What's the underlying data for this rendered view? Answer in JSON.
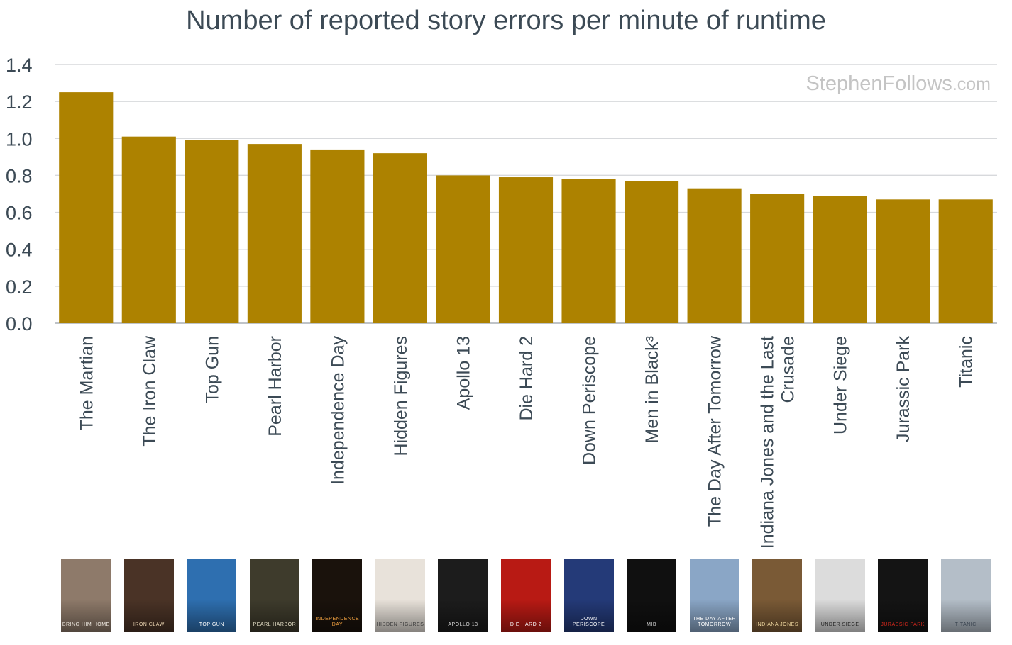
{
  "chart_data": {
    "type": "bar",
    "title": "Number of reported story errors per minute of runtime",
    "xlabel": "",
    "ylabel": "",
    "ylim": [
      0,
      1.4
    ],
    "yticks": [
      "0.0",
      "0.2",
      "0.4",
      "0.6",
      "0.8",
      "1.0",
      "1.2",
      "1.4"
    ],
    "grid": true,
    "bar_color": "#ad8200",
    "categories": [
      [
        "The Martian"
      ],
      [
        "The Iron Claw"
      ],
      [
        "Top Gun"
      ],
      [
        "Pearl Harbor"
      ],
      [
        "Independence Day"
      ],
      [
        "Hidden Figures"
      ],
      [
        "Apollo 13"
      ],
      [
        "Die Hard 2"
      ],
      [
        "Down Periscope"
      ],
      [
        "Men in Black³"
      ],
      [
        "The Day After Tomorrow"
      ],
      [
        "Indiana Jones and the Last",
        "Crusade"
      ],
      [
        "Under Siege"
      ],
      [
        "Jurassic Park"
      ],
      [
        "Titanic"
      ]
    ],
    "values": [
      1.25,
      1.01,
      0.99,
      0.97,
      0.94,
      0.92,
      0.8,
      0.79,
      0.78,
      0.77,
      0.73,
      0.7,
      0.69,
      0.67,
      0.67
    ]
  },
  "watermark": {
    "name": "StephenFollows",
    "tld": ".com"
  },
  "posters": [
    {
      "icon": "the-martian-poster-icon",
      "bg": "#8e7a6a",
      "fg": "#f2ece4",
      "text": "BRING HIM HOME"
    },
    {
      "icon": "the-iron-claw-poster-icon",
      "bg": "#4a3326",
      "fg": "#e8d2b0",
      "text": "IRON CLAW"
    },
    {
      "icon": "top-gun-poster-icon",
      "bg": "#2e6fb0",
      "fg": "#ffffff",
      "text": "TOP GUN"
    },
    {
      "icon": "pearl-harbor-poster-icon",
      "bg": "#3e3b2c",
      "fg": "#e6e0c8",
      "text": "PEARL HARBOR"
    },
    {
      "icon": "independence-day-poster-icon",
      "bg": "#1a120c",
      "fg": "#f0a040",
      "text": "INDEPENDENCE DAY"
    },
    {
      "icon": "hidden-figures-poster-icon",
      "bg": "#e8e2da",
      "fg": "#3a3a3a",
      "text": "HIDDEN FIGURES"
    },
    {
      "icon": "apollo-13-poster-icon",
      "bg": "#1c1c1c",
      "fg": "#d8d8d8",
      "text": "APOLLO 13"
    },
    {
      "icon": "die-hard-2-poster-icon",
      "bg": "#b81a14",
      "fg": "#ffffff",
      "text": "DIE HARD 2"
    },
    {
      "icon": "down-periscope-poster-icon",
      "bg": "#243a78",
      "fg": "#ffffff",
      "text": "DOWN PERISCOPE"
    },
    {
      "icon": "men-in-black-poster-icon",
      "bg": "#101010",
      "fg": "#d0d0d0",
      "text": "MIB"
    },
    {
      "icon": "the-day-after-tomorrow-poster-icon",
      "bg": "#8aa6c6",
      "fg": "#ffffff",
      "text": "THE DAY AFTER TOMORROW"
    },
    {
      "icon": "indiana-jones-poster-icon",
      "bg": "#7a5a36",
      "fg": "#f0d8a0",
      "text": "INDIANA JONES"
    },
    {
      "icon": "under-siege-poster-icon",
      "bg": "#dcdcdc",
      "fg": "#222222",
      "text": "UNDER SIEGE"
    },
    {
      "icon": "jurassic-park-poster-icon",
      "bg": "#141414",
      "fg": "#d8281c",
      "text": "JURASSIC PARK"
    },
    {
      "icon": "titanic-poster-icon",
      "bg": "#b4bec8",
      "fg": "#3a4450",
      "text": "TITANIC"
    }
  ]
}
